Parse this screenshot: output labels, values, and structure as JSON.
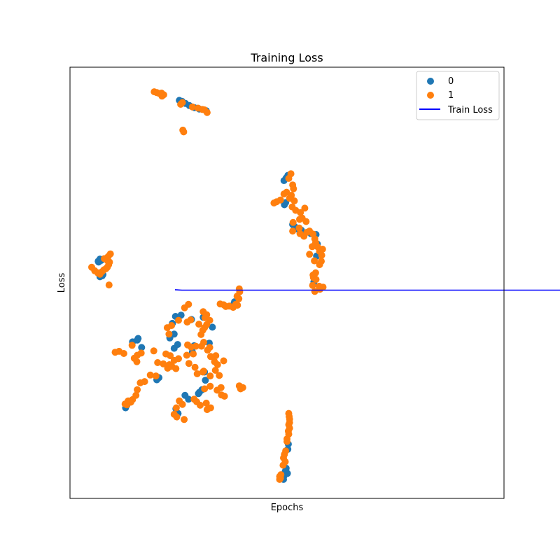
{
  "chart_data": {
    "type": "scatter",
    "title": "Training Loss",
    "xlabel": "Epochs",
    "ylabel": "Loss",
    "xlim": [
      0,
      100
    ],
    "ylim": [
      0,
      100
    ],
    "grid": false,
    "legend_placement": "top-right",
    "ticks_visible": false,
    "colors": {
      "0": "#1f77b4",
      "1": "#ff7f0e",
      "train_loss": "#0000ff"
    },
    "legend": [
      {
        "label": "0",
        "kind": "marker",
        "color": "#1f77b4"
      },
      {
        "label": "1",
        "kind": "marker",
        "color": "#ff7f0e"
      },
      {
        "label": "Train Loss",
        "kind": "line",
        "color": "#0000ff"
      }
    ],
    "series": [
      {
        "name": "0",
        "color": "#1f77b4",
        "points": [
          [
            25.2,
            92.3
          ],
          [
            25.8,
            92.1
          ],
          [
            26.6,
            91.6
          ],
          [
            27.5,
            91.1
          ],
          [
            28.7,
            90.6
          ],
          [
            29.8,
            90.3
          ],
          [
            31.4,
            89.9
          ],
          [
            49.3,
            73.7
          ],
          [
            49.8,
            74.3
          ],
          [
            50.2,
            74.9
          ],
          [
            49.4,
            68.1
          ],
          [
            49.7,
            68.6
          ],
          [
            51.3,
            63.5
          ],
          [
            51.8,
            63.0
          ],
          [
            52.2,
            62.5
          ],
          [
            53.3,
            62.2
          ],
          [
            55.5,
            61.4
          ],
          [
            56.7,
            61.2
          ],
          [
            57.0,
            59.0
          ],
          [
            56.8,
            56.2
          ],
          [
            56.2,
            50.2
          ],
          [
            6.5,
            55.0
          ],
          [
            6.9,
            55.5
          ],
          [
            6.6,
            54.8
          ],
          [
            7.2,
            55.2
          ],
          [
            6.9,
            51.4
          ],
          [
            7.4,
            51.6
          ],
          [
            7.6,
            51.9
          ],
          [
            37.4,
            44.7
          ],
          [
            37.9,
            45.6
          ],
          [
            23.0,
            37.2
          ],
          [
            24.0,
            38.1
          ],
          [
            23.6,
            40.6
          ],
          [
            24.3,
            42.2
          ],
          [
            25.6,
            42.5
          ],
          [
            28.0,
            41.5
          ],
          [
            30.7,
            42.0
          ],
          [
            32.8,
            39.7
          ],
          [
            32.1,
            36.0
          ],
          [
            28.6,
            35.4
          ],
          [
            28.2,
            34.0
          ],
          [
            24.0,
            34.8
          ],
          [
            31.0,
            29.3
          ],
          [
            31.2,
            27.4
          ],
          [
            29.8,
            24.6
          ],
          [
            30.4,
            25.2
          ],
          [
            27.3,
            23.0
          ],
          [
            26.5,
            23.9
          ],
          [
            24.9,
            19.7
          ],
          [
            24.4,
            20.8
          ],
          [
            20.0,
            27.5
          ],
          [
            20.5,
            28.0
          ],
          [
            15.5,
            36.7
          ],
          [
            15.7,
            37.1
          ],
          [
            14.4,
            36.3
          ],
          [
            13.1,
            21.6
          ],
          [
            13.5,
            22.3
          ],
          [
            12.8,
            21.0
          ],
          [
            16.5,
            35.0
          ],
          [
            29.6,
            24.3
          ],
          [
            24.8,
            35.7
          ],
          [
            50.2,
            11.4
          ],
          [
            50.3,
            12.6
          ],
          [
            49.8,
            7.0
          ],
          [
            49.6,
            6.3
          ],
          [
            49.3,
            5.2
          ],
          [
            48.9,
            4.8
          ],
          [
            49.2,
            4.4
          ],
          [
            50.1,
            5.8
          ]
        ]
      },
      {
        "name": "1",
        "color": "#ff7f0e",
        "points": [
          [
            19.4,
            94.3
          ],
          [
            20.0,
            94.1
          ],
          [
            20.6,
            93.9
          ],
          [
            21.1,
            94.0
          ],
          [
            21.6,
            93.6
          ],
          [
            21.2,
            93.3
          ],
          [
            20.8,
            93.9
          ],
          [
            25.9,
            91.8
          ],
          [
            25.5,
            91.4
          ],
          [
            28.2,
            90.8
          ],
          [
            29.5,
            90.5
          ],
          [
            30.5,
            90.2
          ],
          [
            31.0,
            90.1
          ],
          [
            31.6,
            89.5
          ],
          [
            26.0,
            85.4
          ],
          [
            26.2,
            85.0
          ],
          [
            50.9,
            75.3
          ],
          [
            50.4,
            74.2
          ],
          [
            51.3,
            72.7
          ],
          [
            51.5,
            71.8
          ],
          [
            49.9,
            71.0
          ],
          [
            49.3,
            70.6
          ],
          [
            51.0,
            70.3
          ],
          [
            47.0,
            68.5
          ],
          [
            47.6,
            68.8
          ],
          [
            48.5,
            69.2
          ],
          [
            50.6,
            69.6
          ],
          [
            51.7,
            69.0
          ],
          [
            51.2,
            67.6
          ],
          [
            52.0,
            66.8
          ],
          [
            53.1,
            66.3
          ],
          [
            54.1,
            67.3
          ],
          [
            52.9,
            64.7
          ],
          [
            51.4,
            64.0
          ],
          [
            53.5,
            65.0
          ],
          [
            54.4,
            64.2
          ],
          [
            52.8,
            62.7
          ],
          [
            51.3,
            62.0
          ],
          [
            53.0,
            61.4
          ],
          [
            53.9,
            60.8
          ],
          [
            54.6,
            61.7
          ],
          [
            55.2,
            62.0
          ],
          [
            56.0,
            61.3
          ],
          [
            56.4,
            60.2
          ],
          [
            56.6,
            59.3
          ],
          [
            55.8,
            58.4
          ],
          [
            57.0,
            58.4
          ],
          [
            57.5,
            57.3
          ],
          [
            58.2,
            57.8
          ],
          [
            58.0,
            56.4
          ],
          [
            57.9,
            55.0
          ],
          [
            57.5,
            54.2
          ],
          [
            55.2,
            56.6
          ],
          [
            56.3,
            55.1
          ],
          [
            56.6,
            52.3
          ],
          [
            56.0,
            51.8
          ],
          [
            56.1,
            51.2
          ],
          [
            56.7,
            50.8
          ],
          [
            55.9,
            49.4
          ],
          [
            57.4,
            49.2
          ],
          [
            58.3,
            49.0
          ],
          [
            57.6,
            48.5
          ],
          [
            56.4,
            48.0
          ],
          [
            5.0,
            53.6
          ],
          [
            5.7,
            52.8
          ],
          [
            6.4,
            52.3
          ],
          [
            6.9,
            52.0
          ],
          [
            7.4,
            52.6
          ],
          [
            7.8,
            53.0
          ],
          [
            8.3,
            53.3
          ],
          [
            8.6,
            53.6
          ],
          [
            8.9,
            54.2
          ],
          [
            9.1,
            54.8
          ],
          [
            8.6,
            55.2
          ],
          [
            8.2,
            55.6
          ],
          [
            8.8,
            56.1
          ],
          [
            9.3,
            56.7
          ],
          [
            7.9,
            55.6
          ],
          [
            9.0,
            49.5
          ],
          [
            39.0,
            48.6
          ],
          [
            39.1,
            47.9
          ],
          [
            38.5,
            46.9
          ],
          [
            38.9,
            46.3
          ],
          [
            38.2,
            45.0
          ],
          [
            37.6,
            44.3
          ],
          [
            38.6,
            44.8
          ],
          [
            35.4,
            44.9
          ],
          [
            34.6,
            45.1
          ],
          [
            35.9,
            44.5
          ],
          [
            36.7,
            44.6
          ],
          [
            27.3,
            45.0
          ],
          [
            26.4,
            44.2
          ],
          [
            30.7,
            43.3
          ],
          [
            31.5,
            42.6
          ],
          [
            31.1,
            41.9
          ],
          [
            32.2,
            41.3
          ],
          [
            31.5,
            40.3
          ],
          [
            31.0,
            39.6
          ],
          [
            30.6,
            39.0
          ],
          [
            25.0,
            41.3
          ],
          [
            23.4,
            40.1
          ],
          [
            22.4,
            39.6
          ],
          [
            22.8,
            38.1
          ],
          [
            27.0,
            40.9
          ],
          [
            27.8,
            41.4
          ],
          [
            29.7,
            40.4
          ],
          [
            30.2,
            38.0
          ],
          [
            30.8,
            36.2
          ],
          [
            32.2,
            35.0
          ],
          [
            31.7,
            34.4
          ],
          [
            30.3,
            35.3
          ],
          [
            29.0,
            35.3
          ],
          [
            27.9,
            35.1
          ],
          [
            27.1,
            35.6
          ],
          [
            28.4,
            33.5
          ],
          [
            26.9,
            33.2
          ],
          [
            27.4,
            31.3
          ],
          [
            28.8,
            30.4
          ],
          [
            29.3,
            28.9
          ],
          [
            30.8,
            29.5
          ],
          [
            32.4,
            32.9
          ],
          [
            33.3,
            31.7
          ],
          [
            33.6,
            33.1
          ],
          [
            34.0,
            31.0
          ],
          [
            35.4,
            31.9
          ],
          [
            33.5,
            29.7
          ],
          [
            34.4,
            28.5
          ],
          [
            32.3,
            28.4
          ],
          [
            30.6,
            29.3
          ],
          [
            32.3,
            26.0
          ],
          [
            31.0,
            25.4
          ],
          [
            33.9,
            25.1
          ],
          [
            34.8,
            25.7
          ],
          [
            34.9,
            24.0
          ],
          [
            35.6,
            23.7
          ],
          [
            28.6,
            23.0
          ],
          [
            29.2,
            22.4
          ],
          [
            30.0,
            21.6
          ],
          [
            31.4,
            22.1
          ],
          [
            32.4,
            21.0
          ],
          [
            31.6,
            20.6
          ],
          [
            25.2,
            22.6
          ],
          [
            25.9,
            21.8
          ],
          [
            24.5,
            21.0
          ],
          [
            24.0,
            19.5
          ],
          [
            24.6,
            18.9
          ],
          [
            26.3,
            18.3
          ],
          [
            22.5,
            30.2
          ],
          [
            22.9,
            31.0
          ],
          [
            23.5,
            30.6
          ],
          [
            24.0,
            32.0
          ],
          [
            22.1,
            33.5
          ],
          [
            23.1,
            33.1
          ],
          [
            25.0,
            32.4
          ],
          [
            24.4,
            30.1
          ],
          [
            19.3,
            34.2
          ],
          [
            16.4,
            33.7
          ],
          [
            20.2,
            31.5
          ],
          [
            21.5,
            31.2
          ],
          [
            19.8,
            28.4
          ],
          [
            18.5,
            28.6
          ],
          [
            17.2,
            27.1
          ],
          [
            16.2,
            26.8
          ],
          [
            15.5,
            25.2
          ],
          [
            15.2,
            23.9
          ],
          [
            14.4,
            22.9
          ],
          [
            13.4,
            22.6
          ],
          [
            14.0,
            22.3
          ],
          [
            13.1,
            21.7
          ],
          [
            12.7,
            21.9
          ],
          [
            10.4,
            33.9
          ],
          [
            11.3,
            34.1
          ],
          [
            12.4,
            33.6
          ],
          [
            14.3,
            35.5
          ],
          [
            15.5,
            33.2
          ],
          [
            14.8,
            32.5
          ],
          [
            15.4,
            31.7
          ],
          [
            39.0,
            26.1
          ],
          [
            39.3,
            25.4
          ],
          [
            39.8,
            25.7
          ],
          [
            50.4,
            19.7
          ],
          [
            50.5,
            19.0
          ],
          [
            50.6,
            18.4
          ],
          [
            50.6,
            17.6
          ],
          [
            50.4,
            17.1
          ],
          [
            50.6,
            16.3
          ],
          [
            50.3,
            15.6
          ],
          [
            50.4,
            14.9
          ],
          [
            50.0,
            13.8
          ],
          [
            50.0,
            13.2
          ],
          [
            49.7,
            11.0
          ],
          [
            49.4,
            10.2
          ],
          [
            49.2,
            9.4
          ],
          [
            49.6,
            8.5
          ],
          [
            49.1,
            7.7
          ],
          [
            48.6,
            5.5
          ],
          [
            48.5,
            4.7
          ],
          [
            48.3,
            4.4
          ],
          [
            48.3,
            5.1
          ]
        ]
      }
    ],
    "line_series": [
      {
        "name": "Train Loss",
        "color": "#0000ff",
        "x": [
          24.2,
          25.8,
          100,
          192.6
        ],
        "y": [
          48.4,
          48.3,
          48.3,
          48.3
        ]
      }
    ]
  }
}
